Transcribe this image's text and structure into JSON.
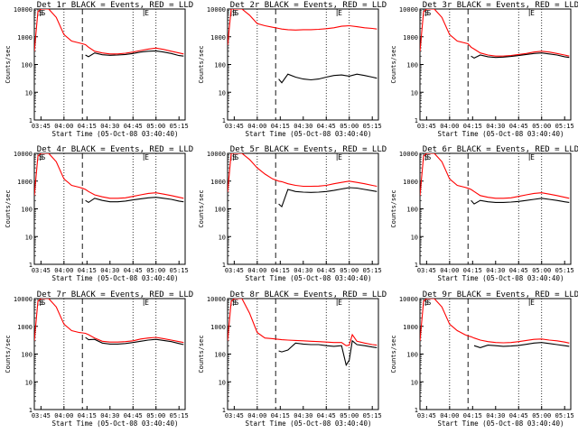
{
  "figure": {
    "xlabel": "Start Time (05-Oct-08 03:40:40)",
    "ylabel": "Counts/sec",
    "x_tick_labels": [
      "03:45",
      "04:00",
      "04:15",
      "04:30",
      "04:45",
      "05:00",
      "05:15"
    ],
    "y_tick_labels": [
      "1",
      "10",
      "100",
      "1000",
      "10000"
    ],
    "flag_labels": [
      "S",
      "S",
      "E"
    ],
    "colors": {
      "events": "#000000",
      "lld": "#ff0000",
      "axes": "#000000",
      "background": "#ffffff"
    }
  },
  "chart_data": [
    {
      "type": "line",
      "title": "Det 1r BLACK = Events, RED = LLD",
      "x": [
        "03:40:40",
        "03:43",
        "03:45",
        "03:50",
        "03:55",
        "04:00",
        "04:05",
        "04:10",
        "04:12",
        "04:14",
        "04:16",
        "04:20",
        "04:25",
        "04:30",
        "04:35",
        "04:40",
        "04:45",
        "04:50",
        "04:55",
        "05:00",
        "05:05",
        "05:10",
        "05:15",
        "05:18"
      ],
      "y_scale": "log",
      "ylim": [
        1,
        10000
      ],
      "series": [
        {
          "name": "Events",
          "values": [
            null,
            null,
            null,
            null,
            null,
            null,
            null,
            null,
            null,
            220,
            190,
            260,
            225,
            215,
            220,
            230,
            250,
            280,
            300,
            310,
            280,
            250,
            210,
            200
          ]
        },
        {
          "name": "LLD",
          "values": [
            300,
            8000,
            10000,
            10000,
            5000,
            1200,
            700,
            600,
            560,
            520,
            420,
            300,
            260,
            240,
            240,
            255,
            280,
            320,
            360,
            390,
            350,
            300,
            260,
            240
          ]
        }
      ]
    },
    {
      "type": "line",
      "title": "Det 2r BLACK = Events, RED = LLD",
      "x": [
        "03:40:40",
        "03:43",
        "03:45",
        "03:50",
        "03:55",
        "04:00",
        "04:05",
        "04:10",
        "04:12",
        "04:14",
        "04:16",
        "04:20",
        "04:25",
        "04:30",
        "04:35",
        "04:40",
        "04:45",
        "04:50",
        "04:55",
        "05:00",
        "05:05",
        "05:10",
        "05:15",
        "05:18"
      ],
      "y_scale": "log",
      "ylim": [
        1,
        10000
      ],
      "series": [
        {
          "name": "Events",
          "values": [
            null,
            null,
            null,
            null,
            null,
            null,
            null,
            null,
            null,
            30,
            22,
            45,
            35,
            30,
            28,
            30,
            35,
            40,
            42,
            38,
            45,
            40,
            35,
            32
          ]
        },
        {
          "name": "LLD",
          "values": [
            500,
            10000,
            10000,
            10000,
            6000,
            3000,
            2500,
            2200,
            2100,
            2000,
            1900,
            1800,
            1750,
            1800,
            1800,
            1850,
            1950,
            2100,
            2400,
            2500,
            2300,
            2100,
            2000,
            1900
          ]
        }
      ]
    },
    {
      "type": "line",
      "title": "Det 3r BLACK = Events, RED = LLD",
      "x": [
        "03:40:40",
        "03:43",
        "03:45",
        "03:50",
        "03:55",
        "04:00",
        "04:05",
        "04:10",
        "04:12",
        "04:14",
        "04:16",
        "04:20",
        "04:25",
        "04:30",
        "04:35",
        "04:40",
        "04:45",
        "04:50",
        "04:55",
        "05:00",
        "05:05",
        "05:10",
        "05:15",
        "05:18"
      ],
      "y_scale": "log",
      "ylim": [
        1,
        10000
      ],
      "series": [
        {
          "name": "Events",
          "values": [
            null,
            null,
            null,
            null,
            null,
            null,
            null,
            null,
            null,
            200,
            170,
            220,
            190,
            180,
            185,
            195,
            210,
            230,
            250,
            260,
            240,
            220,
            190,
            180
          ]
        },
        {
          "name": "LLD",
          "values": [
            300,
            8000,
            10000,
            10000,
            5000,
            1200,
            700,
            600,
            560,
            420,
            360,
            260,
            220,
            200,
            200,
            210,
            230,
            250,
            280,
            300,
            280,
            250,
            220,
            200
          ]
        }
      ]
    },
    {
      "type": "line",
      "title": "Det 4r BLACK = Events, RED = LLD",
      "x": [
        "03:40:40",
        "03:43",
        "03:45",
        "03:50",
        "03:55",
        "04:00",
        "04:05",
        "04:10",
        "04:12",
        "04:14",
        "04:16",
        "04:20",
        "04:25",
        "04:30",
        "04:35",
        "04:40",
        "04:45",
        "04:50",
        "04:55",
        "05:00",
        "05:05",
        "05:10",
        "05:15",
        "05:18"
      ],
      "y_scale": "log",
      "ylim": [
        1,
        10000
      ],
      "series": [
        {
          "name": "Events",
          "values": [
            null,
            null,
            null,
            null,
            null,
            null,
            null,
            null,
            null,
            200,
            170,
            240,
            200,
            180,
            180,
            190,
            210,
            230,
            250,
            260,
            240,
            220,
            190,
            180
          ]
        },
        {
          "name": "LLD",
          "values": [
            300,
            8000,
            10000,
            10000,
            5000,
            1200,
            700,
            600,
            550,
            500,
            420,
            320,
            270,
            240,
            240,
            250,
            280,
            320,
            360,
            380,
            340,
            300,
            260,
            240
          ]
        }
      ]
    },
    {
      "type": "line",
      "title": "Det 5r BLACK = Events, RED = LLD",
      "x": [
        "03:40:40",
        "03:43",
        "03:45",
        "03:50",
        "03:55",
        "04:00",
        "04:05",
        "04:10",
        "04:12",
        "04:14",
        "04:16",
        "04:20",
        "04:25",
        "04:30",
        "04:35",
        "04:40",
        "04:45",
        "04:50",
        "04:55",
        "05:00",
        "05:05",
        "05:10",
        "05:15",
        "05:18"
      ],
      "y_scale": "log",
      "ylim": [
        1,
        10000
      ],
      "series": [
        {
          "name": "Events",
          "values": [
            null,
            null,
            null,
            null,
            null,
            null,
            null,
            null,
            null,
            150,
            120,
            500,
            420,
            400,
            390,
            400,
            420,
            460,
            520,
            580,
            560,
            500,
            450,
            420
          ]
        },
        {
          "name": "LLD",
          "values": [
            400,
            10000,
            10000,
            10000,
            6000,
            3000,
            1800,
            1200,
            1100,
            1000,
            950,
            800,
            700,
            650,
            650,
            660,
            700,
            800,
            900,
            1000,
            900,
            800,
            700,
            650
          ]
        }
      ]
    },
    {
      "type": "line",
      "title": "Det 6r BLACK = Events, RED = LLD",
      "x": [
        "03:40:40",
        "03:43",
        "03:45",
        "03:50",
        "03:55",
        "04:00",
        "04:05",
        "04:10",
        "04:12",
        "04:14",
        "04:16",
        "04:20",
        "04:25",
        "04:30",
        "04:35",
        "04:40",
        "04:45",
        "04:50",
        "04:55",
        "05:00",
        "05:05",
        "05:10",
        "05:15",
        "05:18"
      ],
      "y_scale": "log",
      "ylim": [
        1,
        10000
      ],
      "series": [
        {
          "name": "Events",
          "values": [
            null,
            null,
            null,
            null,
            null,
            null,
            null,
            null,
            null,
            200,
            150,
            200,
            180,
            170,
            170,
            175,
            185,
            200,
            220,
            240,
            220,
            200,
            180,
            170
          ]
        },
        {
          "name": "LLD",
          "values": [
            300,
            8000,
            10000,
            10000,
            5000,
            1200,
            700,
            600,
            550,
            500,
            420,
            300,
            260,
            240,
            240,
            250,
            280,
            320,
            360,
            380,
            340,
            300,
            260,
            240
          ]
        }
      ]
    },
    {
      "type": "line",
      "title": "Det 7r BLACK = Events, RED = LLD",
      "x": [
        "03:40:40",
        "03:43",
        "03:45",
        "03:50",
        "03:55",
        "04:00",
        "04:05",
        "04:10",
        "04:12",
        "04:14",
        "04:16",
        "04:20",
        "04:25",
        "04:30",
        "04:35",
        "04:40",
        "04:45",
        "04:50",
        "04:55",
        "05:00",
        "05:05",
        "05:10",
        "05:15",
        "05:18"
      ],
      "y_scale": "log",
      "ylim": [
        1,
        10000
      ],
      "series": [
        {
          "name": "Events",
          "values": [
            null,
            null,
            null,
            null,
            null,
            null,
            null,
            null,
            null,
            400,
            330,
            340,
            250,
            230,
            230,
            240,
            260,
            290,
            320,
            340,
            310,
            280,
            240,
            220
          ]
        },
        {
          "name": "LLD",
          "values": [
            300,
            8000,
            10000,
            10000,
            5000,
            1200,
            700,
            600,
            580,
            560,
            500,
            380,
            290,
            270,
            270,
            280,
            300,
            350,
            380,
            400,
            360,
            320,
            280,
            260
          ]
        }
      ]
    },
    {
      "type": "line",
      "title": "Det 8r BLACK = Events, RED = LLD",
      "x": [
        "03:40:40",
        "03:43",
        "03:45",
        "03:50",
        "03:55",
        "04:00",
        "04:05",
        "04:10",
        "04:12",
        "04:14",
        "04:16",
        "04:20",
        "04:25",
        "04:30",
        "04:35",
        "04:40",
        "04:45",
        "04:50",
        "04:55",
        "04:58",
        "05:00",
        "05:02",
        "05:05",
        "05:10",
        "05:15",
        "05:18"
      ],
      "y_scale": "log",
      "ylim": [
        1,
        10000
      ],
      "series": [
        {
          "name": "Events",
          "values": [
            null,
            null,
            null,
            null,
            null,
            null,
            null,
            null,
            null,
            130,
            120,
            140,
            250,
            230,
            220,
            220,
            200,
            190,
            200,
            40,
            60,
            300,
            220,
            200,
            180,
            170
          ]
        },
        {
          "name": "LLD",
          "values": [
            300,
            8000,
            10000,
            10000,
            3000,
            600,
            380,
            360,
            350,
            340,
            330,
            320,
            310,
            300,
            290,
            280,
            270,
            260,
            260,
            200,
            210,
            500,
            290,
            250,
            220,
            210
          ]
        }
      ]
    },
    {
      "type": "line",
      "title": "Det 9r BLACK = Events, RED = LLD",
      "x": [
        "03:40:40",
        "03:43",
        "03:45",
        "03:50",
        "03:55",
        "04:00",
        "04:05",
        "04:10",
        "04:12",
        "04:14",
        "04:16",
        "04:20",
        "04:25",
        "04:30",
        "04:35",
        "04:40",
        "04:45",
        "04:50",
        "04:55",
        "05:00",
        "05:05",
        "05:10",
        "05:15",
        "05:18"
      ],
      "y_scale": "log",
      "ylim": [
        1,
        10000
      ],
      "series": [
        {
          "name": "Events",
          "values": [
            null,
            null,
            null,
            null,
            null,
            null,
            null,
            null,
            null,
            null,
            200,
            170,
            210,
            200,
            190,
            195,
            205,
            225,
            250,
            260,
            240,
            220,
            200,
            190
          ]
        },
        {
          "name": "LLD",
          "values": [
            300,
            8000,
            10000,
            10000,
            5000,
            1200,
            700,
            500,
            450,
            420,
            380,
            320,
            280,
            260,
            255,
            260,
            280,
            310,
            340,
            350,
            320,
            300,
            270,
            250
          ]
        }
      ]
    }
  ]
}
